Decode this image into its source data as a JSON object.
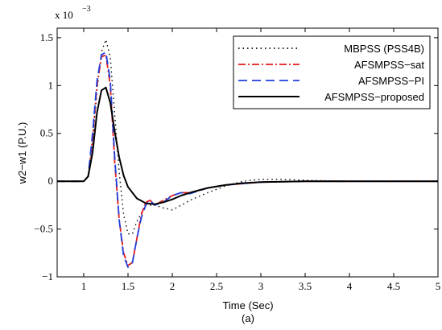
{
  "chart_data": {
    "type": "line",
    "xlabel": "Time (Sec)",
    "ylabel": "w2−w1 (P.U.)",
    "caption": "(a)",
    "y_multiplier": "x 10",
    "y_exponent": "−3",
    "xlim": [
      0.7,
      5
    ],
    "ylim": [
      -1.0,
      1.6
    ],
    "xticks": [
      1,
      1.5,
      2,
      2.5,
      3,
      3.5,
      4,
      4.5,
      5
    ],
    "xtick_labels": [
      "1",
      "1.5",
      "2",
      "2.5",
      "3",
      "3.5",
      "4",
      "4.5",
      "5"
    ],
    "yticks": [
      -1,
      -0.5,
      0,
      0.5,
      1,
      1.5
    ],
    "ytick_labels": [
      "−1",
      "−0.5",
      "0",
      "0.5",
      "1",
      "1.5"
    ],
    "legend_position": "top-right",
    "series": [
      {
        "name": "MBPSS (PSS4B)",
        "color": "#000000",
        "style": "dotted",
        "x": [
          0.7,
          1.0,
          1.05,
          1.1,
          1.15,
          1.2,
          1.25,
          1.3,
          1.35,
          1.4,
          1.45,
          1.5,
          1.55,
          1.6,
          1.7,
          1.8,
          1.9,
          2.0,
          2.1,
          2.2,
          2.4,
          2.6,
          2.8,
          3.0,
          3.2,
          3.5,
          4.0,
          5.0
        ],
        "y": [
          0,
          0,
          0.05,
          0.4,
          0.95,
          1.35,
          1.48,
          1.3,
          0.7,
          0.1,
          -0.35,
          -0.55,
          -0.55,
          -0.42,
          -0.25,
          -0.25,
          -0.28,
          -0.3,
          -0.25,
          -0.2,
          -0.12,
          -0.05,
          0.0,
          0.02,
          0.02,
          0.01,
          0.0,
          0.0
        ]
      },
      {
        "name": "AFSMPSS−sat",
        "color": "#e41a1c",
        "style": "dashdot",
        "x": [
          0.7,
          1.0,
          1.05,
          1.1,
          1.15,
          1.2,
          1.25,
          1.3,
          1.35,
          1.4,
          1.45,
          1.5,
          1.55,
          1.6,
          1.65,
          1.7,
          1.75,
          1.8,
          1.9,
          2.0,
          2.1,
          2.2,
          2.4,
          2.6,
          3.0,
          3.5,
          5.0
        ],
        "y": [
          0,
          0,
          0.05,
          0.45,
          1.0,
          1.3,
          1.32,
          1.0,
          0.2,
          -0.4,
          -0.75,
          -0.88,
          -0.85,
          -0.6,
          -0.35,
          -0.22,
          -0.2,
          -0.25,
          -0.2,
          -0.15,
          -0.12,
          -0.12,
          -0.07,
          -0.04,
          -0.01,
          0.0,
          0.0
        ]
      },
      {
        "name": "AFSMPSS−PI",
        "color": "#1f3fdc",
        "style": "dashed",
        "x": [
          0.7,
          1.0,
          1.05,
          1.1,
          1.15,
          1.2,
          1.25,
          1.3,
          1.35,
          1.4,
          1.45,
          1.5,
          1.55,
          1.6,
          1.65,
          1.7,
          1.75,
          1.8,
          1.9,
          2.0,
          2.1,
          2.2,
          2.4,
          2.6,
          3.0,
          3.5,
          5.0
        ],
        "y": [
          0,
          0,
          0.05,
          0.5,
          1.05,
          1.32,
          1.35,
          1.05,
          0.25,
          -0.4,
          -0.78,
          -0.9,
          -0.85,
          -0.6,
          -0.38,
          -0.25,
          -0.2,
          -0.25,
          -0.22,
          -0.15,
          -0.12,
          -0.13,
          -0.07,
          -0.04,
          -0.01,
          0.0,
          0.0
        ]
      },
      {
        "name": "AFSMPSS−proposed",
        "color": "#000000",
        "style": "solid",
        "x": [
          0.7,
          1.0,
          1.05,
          1.1,
          1.15,
          1.2,
          1.25,
          1.3,
          1.35,
          1.4,
          1.45,
          1.5,
          1.6,
          1.7,
          1.8,
          1.9,
          2.0,
          2.1,
          2.2,
          2.4,
          2.6,
          2.8,
          3.0,
          3.5,
          4.0,
          5.0
        ],
        "y": [
          0,
          0,
          0.05,
          0.3,
          0.72,
          0.95,
          0.98,
          0.82,
          0.52,
          0.25,
          0.06,
          -0.06,
          -0.18,
          -0.23,
          -0.24,
          -0.22,
          -0.19,
          -0.15,
          -0.12,
          -0.07,
          -0.04,
          -0.02,
          -0.01,
          0.0,
          0.0,
          0.0
        ]
      }
    ]
  }
}
